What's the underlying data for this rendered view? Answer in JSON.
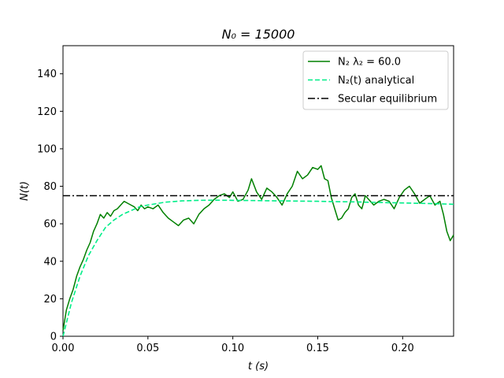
{
  "chart_data": {
    "type": "line",
    "title": "N₀ = 15000",
    "xlabel": "t (s)",
    "ylabel": "N(t)",
    "xlim": [
      0,
      0.23
    ],
    "ylim": [
      0,
      155
    ],
    "xticks": [
      0.0,
      0.05,
      0.1,
      0.15,
      0.2
    ],
    "xtick_labels": [
      "0.00",
      "0.05",
      "0.10",
      "0.15",
      "0.20"
    ],
    "yticks": [
      0,
      20,
      40,
      60,
      80,
      100,
      120,
      140
    ],
    "ytick_labels": [
      "0",
      "20",
      "40",
      "60",
      "80",
      "100",
      "120",
      "140"
    ],
    "grid": false,
    "legend_position": "top-right",
    "series": [
      {
        "name": "N₂ λ₂ = 60.0",
        "style": "solid",
        "color": "#008000",
        "x": [
          0.0,
          0.002,
          0.004,
          0.006,
          0.008,
          0.01,
          0.012,
          0.014,
          0.016,
          0.018,
          0.02,
          0.022,
          0.024,
          0.026,
          0.028,
          0.03,
          0.032,
          0.034,
          0.036,
          0.038,
          0.04,
          0.042,
          0.044,
          0.046,
          0.048,
          0.05,
          0.053,
          0.056,
          0.059,
          0.062,
          0.065,
          0.068,
          0.071,
          0.074,
          0.077,
          0.08,
          0.083,
          0.086,
          0.089,
          0.092,
          0.095,
          0.098,
          0.1,
          0.103,
          0.106,
          0.109,
          0.111,
          0.114,
          0.117,
          0.12,
          0.123,
          0.126,
          0.129,
          0.132,
          0.135,
          0.138,
          0.141,
          0.144,
          0.147,
          0.15,
          0.152,
          0.154,
          0.156,
          0.158,
          0.16,
          0.162,
          0.164,
          0.166,
          0.168,
          0.17,
          0.172,
          0.174,
          0.176,
          0.178,
          0.18,
          0.183,
          0.186,
          0.189,
          0.192,
          0.195,
          0.198,
          0.201,
          0.204,
          0.207,
          0.21,
          0.213,
          0.216,
          0.219,
          0.222,
          0.224,
          0.226,
          0.228,
          0.23
        ],
        "y": [
          3,
          14,
          20,
          25,
          32,
          37,
          41,
          46,
          50,
          56,
          60,
          65,
          63,
          66,
          64,
          67,
          68,
          70,
          72,
          71,
          70,
          69,
          67,
          70,
          68,
          69,
          68,
          70,
          66,
          63,
          61,
          59,
          62,
          63,
          60,
          65,
          68,
          70,
          73,
          75,
          76,
          74,
          77,
          72,
          73,
          78,
          84,
          77,
          73,
          79,
          77,
          74,
          70,
          76,
          80,
          88,
          84,
          86,
          90,
          89,
          91,
          84,
          83,
          74,
          68,
          62,
          63,
          66,
          68,
          74,
          76,
          70,
          68,
          75,
          73,
          70,
          72,
          73,
          72,
          68,
          74,
          78,
          80,
          76,
          71,
          73,
          75,
          70,
          72,
          65,
          56,
          51,
          54
        ]
      },
      {
        "name": "N₂(t) analytical",
        "style": "dashed",
        "color": "#00ee88",
        "x": [
          0.0,
          0.005,
          0.01,
          0.015,
          0.02,
          0.025,
          0.03,
          0.035,
          0.04,
          0.045,
          0.05,
          0.06,
          0.07,
          0.08,
          0.09,
          0.1,
          0.11,
          0.12,
          0.13,
          0.14,
          0.15,
          0.16,
          0.17,
          0.18,
          0.19,
          0.2,
          0.21,
          0.22,
          0.23
        ],
        "y": [
          0,
          18,
          32,
          43,
          51,
          58,
          62,
          65,
          67,
          69,
          70,
          71.5,
          72.2,
          72.5,
          72.6,
          72.5,
          72.4,
          72.3,
          72.2,
          72.1,
          72.0,
          71.8,
          71.7,
          71.5,
          71.3,
          71.1,
          70.9,
          70.7,
          70.4
        ]
      },
      {
        "name": "Secular equilibrium",
        "style": "dashdot",
        "color": "#000000",
        "x": [
          0,
          0.23
        ],
        "y": [
          75,
          75
        ]
      }
    ]
  }
}
